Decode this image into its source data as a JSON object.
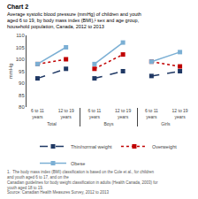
{
  "chart_data": {
    "type": "line",
    "title": "Chart 2",
    "subtitle": "Average systolic blood pressure (mmHg) of children and youth\naged 6 to 19, by body mass index (BMI),¹ sex and age group,\nhousehold population, Canada, 2012 to 2013",
    "y_label": "mmHg",
    "categories": [
      [
        "Total",
        "6 to 11\nyears"
      ],
      [
        "Total",
        "12 to 19\nyears"
      ],
      [
        "Boys",
        "6 to 11\nyears"
      ],
      [
        "Boys",
        "12 to 19\nyears"
      ],
      [
        "Girls",
        "6 to 11\nyears"
      ],
      [
        "Girls",
        "12 to 19\nyears"
      ]
    ],
    "series": [
      {
        "name": "Thin/normal weight",
        "color": "#1f3864",
        "marker": "square",
        "line_style": "dashed",
        "values": [
          92,
          96,
          92,
          95,
          93,
          95
        ]
      },
      {
        "name": "Overweight",
        "color": "#c00000",
        "marker": "square",
        "line_style": "dotted",
        "values": [
          98,
          100,
          96,
          102,
          99,
          97
        ]
      },
      {
        "name": "Obese",
        "color": "#7bafd4",
        "marker": "square",
        "line_style": "solid",
        "values": [
          98,
          105,
          98,
          107,
          99,
          103
        ]
      }
    ],
    "ylim": [
      80,
      110
    ],
    "yticks": [
      80,
      85,
      90,
      95,
      100,
      105,
      110
    ],
    "grid": false,
    "legend": "bottom",
    "annotations": [
      "1.  The body mass index (BMI) classification is based on the Cole et al., for children and youth aged 6 to 17, and on the",
      "Canadian guidelines for body weight classification in adults (Health Canada, 2003) for youth aged 18 to 19.",
      "Source: Canadian Health Measures Survey, 2012 to 2013"
    ]
  }
}
